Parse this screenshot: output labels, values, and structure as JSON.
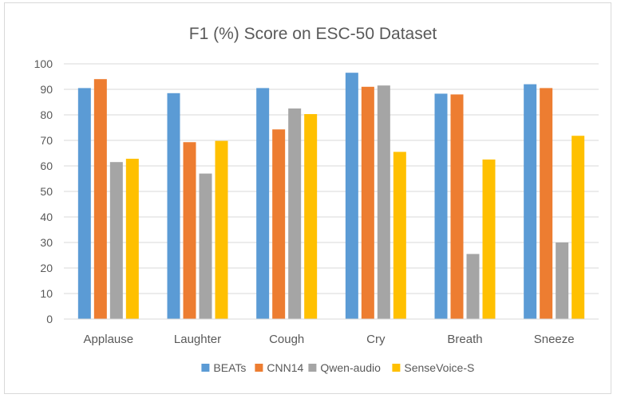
{
  "chart_data": {
    "type": "bar",
    "title": "F1 (%) Score on ESC-50 Dataset",
    "xlabel": "",
    "ylabel": "",
    "ylim": [
      0,
      100
    ],
    "yticks": [
      0,
      10,
      20,
      30,
      40,
      50,
      60,
      70,
      80,
      90,
      100
    ],
    "grid": true,
    "legend_position": "bottom",
    "categories": [
      "Applause",
      "Laughter",
      "Cough",
      "Cry",
      "Breath",
      "Sneeze"
    ],
    "series": [
      {
        "name": "BEATs",
        "color": "#5b9bd5",
        "values": [
          90.5,
          88.5,
          90.5,
          96.5,
          88.3,
          92.0
        ]
      },
      {
        "name": "CNN14",
        "color": "#ed7d31",
        "values": [
          94.0,
          69.3,
          74.3,
          91.0,
          88.0,
          90.5
        ]
      },
      {
        "name": "Qwen-audio",
        "color": "#a5a5a5",
        "values": [
          61.5,
          57.0,
          82.5,
          91.5,
          25.5,
          30.0
        ]
      },
      {
        "name": "SenseVoice-S",
        "color": "#ffc000",
        "values": [
          62.8,
          69.8,
          80.3,
          65.5,
          62.5,
          71.8
        ]
      }
    ]
  }
}
